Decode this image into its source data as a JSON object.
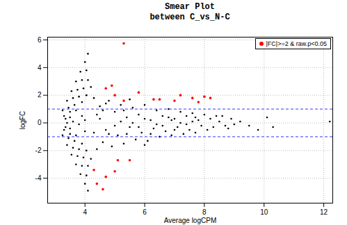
{
  "chart_data": {
    "type": "scatter",
    "title": "Smear Plot",
    "subtitle": "between C_vs_N-C",
    "x_label": "Average logCPM",
    "y_label": "logFC",
    "xlim": [
      2.75,
      12.3
    ],
    "ylim": [
      -5.8,
      6.2
    ],
    "xticks": [
      4,
      6,
      8,
      10,
      12
    ],
    "yticks": [
      -4,
      -2,
      0,
      2,
      4,
      6
    ],
    "grid": true,
    "legend": "topright",
    "reference_lines": {
      "values": [
        1,
        -1
      ],
      "color": "#0000ff",
      "line_style": "dashed"
    },
    "series": [
      {
        "color": "#000000",
        "x": [
          3.25,
          3.4,
          3.55,
          3.7,
          3.85,
          4.0,
          4.1,
          3.3,
          3.45,
          3.6,
          3.75,
          3.9,
          4.05,
          3.35,
          3.5,
          3.65,
          3.8,
          3.95,
          4.1,
          3.5,
          3.7,
          3.9,
          4.05,
          4.2,
          3.25,
          3.4,
          3.55,
          3.7,
          3.85,
          4.0,
          4.1,
          3.3,
          3.45,
          3.6,
          3.75,
          3.9,
          4.05,
          3.35,
          3.5,
          3.65,
          3.8,
          3.95,
          4.1,
          3.5,
          3.7,
          3.9,
          4.05,
          4.2,
          3.4,
          3.6,
          3.8,
          4.0,
          3.9,
          4.0,
          4.3,
          4.4,
          4.5,
          4.6,
          4.5,
          4.7,
          4.8,
          4.9,
          5.0,
          5.1,
          5.2,
          5.3,
          5.4,
          5.5,
          5.6,
          5.7,
          5.8,
          5.9,
          6.0,
          6.1,
          6.2,
          6.3,
          6.4,
          6.5,
          6.6,
          6.7,
          6.8,
          6.9,
          7.0,
          7.1,
          7.2,
          7.3,
          7.4,
          7.5,
          7.6,
          7.7,
          7.8,
          7.9,
          8.0,
          8.1,
          8.2,
          8.3,
          8.4,
          8.5,
          8.7,
          8.9,
          9.2,
          9.5,
          9.8,
          10.1,
          10.3,
          12.2,
          4.6,
          4.8,
          5.0,
          5.2,
          5.4,
          5.6,
          5.8,
          6.0,
          6.2,
          6.4,
          6.6,
          6.8,
          7.0,
          7.2,
          7.4,
          7.6,
          4.4,
          4.3,
          4.7,
          5.5,
          6.0,
          5.3,
          6.9,
          7.7,
          8.6,
          8.8,
          9.0
        ],
        "values": [
          0.9,
          1.6,
          2.3,
          3.0,
          3.7,
          4.4,
          5.0,
          0.5,
          1.1,
          1.8,
          2.4,
          3.1,
          3.8,
          0.3,
          0.8,
          1.3,
          1.9,
          2.5,
          3.1,
          0.4,
          0.9,
          1.5,
          2.0,
          2.6,
          -0.9,
          -1.6,
          -2.3,
          -3.0,
          -3.7,
          -4.4,
          -4.9,
          -0.5,
          -1.1,
          -1.8,
          -2.4,
          -3.1,
          -3.8,
          -0.3,
          -0.8,
          -1.3,
          -1.9,
          -2.5,
          -3.1,
          -0.4,
          -0.9,
          -1.5,
          -2.0,
          -2.6,
          0,
          0.1,
          -0.1,
          0.2,
          0.5,
          -0.6,
          1.8,
          -1.9,
          1.2,
          -1.4,
          0.3,
          -0.5,
          1.6,
          -1.7,
          0.8,
          -0.9,
          1.3,
          -1.5,
          0.4,
          -0.3,
          1.1,
          -1.2,
          0.6,
          -0.7,
          1.3,
          -1.3,
          0.2,
          -0.4,
          0.9,
          -1.0,
          0.5,
          -0.6,
          1.0,
          -0.9,
          0.3,
          -0.3,
          0.8,
          -0.8,
          0.5,
          -0.5,
          0.7,
          -0.7,
          0.2,
          -0.2,
          0.6,
          -0.5,
          0.3,
          -0.3,
          0.5,
          0.1,
          -0.2,
          0.3,
          0.1,
          -0.2,
          -0.5,
          0.4,
          -0.3,
          0.1,
          0.9,
          -0.8,
          -0.2,
          0.1,
          -0.8,
          0.0,
          -0.3,
          0.3,
          -0.8,
          -0.1,
          -0.2,
          0.4,
          -0.5,
          0.0,
          -0.1,
          0.1,
          0.6,
          -0.7,
          1.4,
          1.7,
          -1.6,
          0.9,
          0.2,
          0.4,
          0.5,
          -0.4,
          -0.1
        ]
      },
      {
        "name": "|FC|>=2 & raw.p<0.05",
        "color": "#ff0000",
        "x": [
          5.3,
          4.7,
          4.9,
          5.0,
          5.8,
          6.3,
          6.5,
          7.0,
          7.2,
          7.6,
          8.0,
          8.2,
          7.8,
          5.3,
          4.3,
          4.4,
          4.6,
          4.7,
          5.0,
          5.1,
          5.5
        ],
        "values": [
          5.75,
          2.5,
          2.7,
          2.0,
          2.2,
          1.7,
          1.7,
          1.6,
          2.0,
          1.8,
          1.9,
          1.8,
          1.5,
          1.6,
          -3.4,
          -4.4,
          -4.8,
          -3.9,
          -3.5,
          -2.7,
          -2.7
        ]
      }
    ]
  }
}
